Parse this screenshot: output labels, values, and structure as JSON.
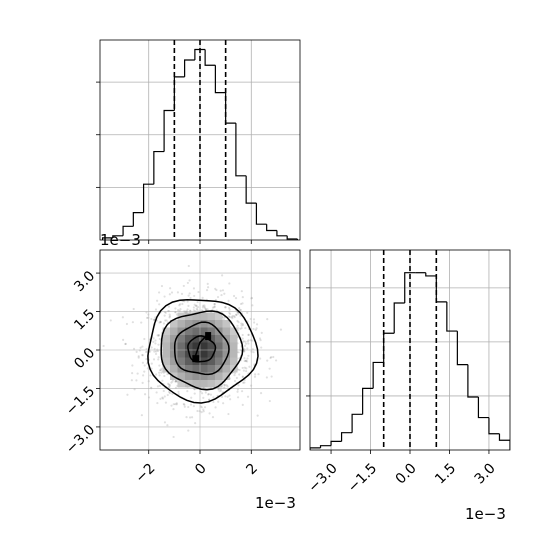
{
  "chart_data": [
    {
      "type": "histogram",
      "panel": "top-left",
      "description_role": "marginal of parameter x",
      "bins": [
        -0.0038,
        -0.0034,
        -0.003,
        -0.0026,
        -0.0022,
        -0.0018,
        -0.0014,
        -0.001,
        -0.0006,
        -0.0002,
        0.0002,
        0.0006,
        0.001,
        0.0014,
        0.0018,
        0.0022,
        0.0026,
        0.003,
        0.0034,
        0.0038
      ],
      "counts": [
        2,
        4,
        13,
        26,
        53,
        84,
        123,
        155,
        171,
        181,
        166,
        140,
        111,
        61,
        35,
        15,
        9,
        4,
        1
      ],
      "xlim": [
        -0.0039,
        0.0039
      ],
      "ylim": [
        0,
        190
      ],
      "quantile_lines": [
        -0.001,
        0.0,
        0.001
      ],
      "grid": true,
      "xticks": [
        -0.002,
        0,
        0.002
      ],
      "yticks": [
        50,
        100,
        150
      ]
    },
    {
      "type": "2d-histogram-contour",
      "panel": "bottom-left",
      "xlim": [
        -0.0039,
        0.0039
      ],
      "ylim": [
        -0.0039,
        0.0039
      ],
      "xticks": [
        -0.002,
        0,
        0.002
      ],
      "xtick_labels": [
        "−2",
        "0",
        "2"
      ],
      "yticks": [
        -0.003,
        -0.0015,
        0.0,
        0.0015,
        0.003
      ],
      "ytick_labels": [
        "−3.0",
        "−1.5",
        "0.0",
        "1.5",
        "3.0"
      ],
      "x_offset_label": "1e−3",
      "y_offset_label": "1e−3",
      "contour_levels_sigma": [
        0.5,
        1.0,
        1.5,
        2.0
      ],
      "grid": true
    },
    {
      "type": "histogram",
      "panel": "bottom-right",
      "description_role": "marginal of parameter y",
      "bins": [
        -0.0038,
        -0.0034,
        -0.003,
        -0.0026,
        -0.0022,
        -0.0018,
        -0.0014,
        -0.001,
        -0.0006,
        -0.0002,
        0.0002,
        0.0006,
        0.001,
        0.0014,
        0.0018,
        0.0022,
        0.0026,
        0.003,
        0.0034,
        0.0038
      ],
      "counts": [
        2,
        4,
        8,
        16,
        33,
        57,
        81,
        108,
        136,
        164,
        164,
        161,
        137,
        110,
        79,
        49,
        30,
        15,
        9
      ],
      "xlim": [
        -0.0038,
        0.0038
      ],
      "ylim": [
        0,
        185
      ],
      "quantile_lines": [
        -0.001,
        0.0,
        0.001
      ],
      "xticks": [
        -0.003,
        -0.0015,
        0.0,
        0.0015,
        0.003
      ],
      "xtick_labels": [
        "−3.0",
        "−1.5",
        "0.0",
        "1.5",
        "3.0"
      ],
      "x_offset_label": "1e−3",
      "yticks": [
        50,
        100,
        150
      ],
      "grid": true
    }
  ]
}
